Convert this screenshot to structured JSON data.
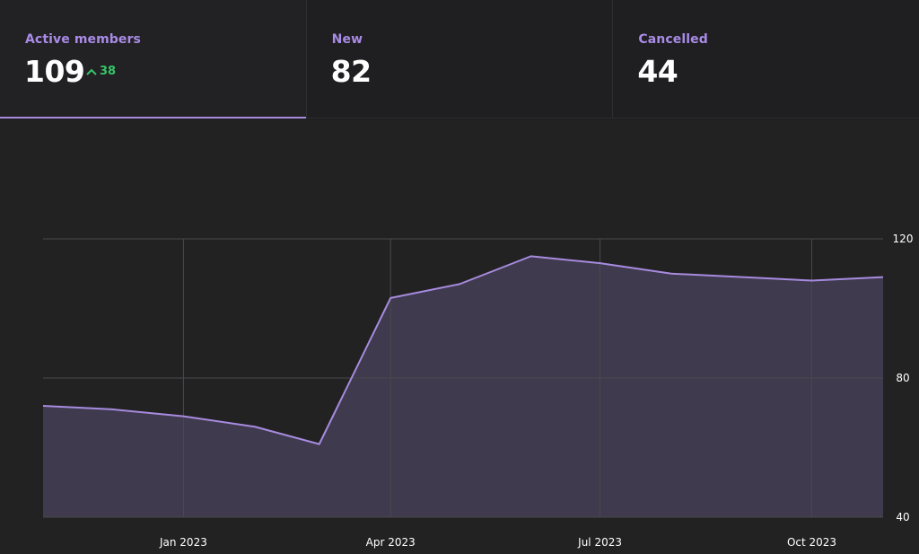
{
  "stats": [
    {
      "label": "Active members",
      "value": "109",
      "delta": "38",
      "delta_direction": "up"
    },
    {
      "label": "New",
      "value": "82"
    },
    {
      "label": "Cancelled",
      "value": "44"
    }
  ],
  "colors": {
    "accent": "#a78bdf",
    "area_fill": "#3f3a4d",
    "positive": "#36c46a",
    "grid": "#4a494c",
    "background": "#232223"
  },
  "chart_data": {
    "type": "area",
    "title": "",
    "xlabel": "",
    "ylabel": "",
    "x": [
      "2022-11-01",
      "2022-12-01",
      "2023-01-01",
      "2023-02-01",
      "2023-03-01",
      "2023-04-01",
      "2023-05-01",
      "2023-06-01",
      "2023-07-01",
      "2023-08-01",
      "2023-09-01",
      "2023-10-01",
      "2023-11-01"
    ],
    "values": [
      72,
      71,
      69,
      66,
      61,
      103,
      107,
      115,
      113,
      110,
      109,
      108,
      109
    ],
    "xlim": [
      "2022-11-01",
      "2023-11-01"
    ],
    "ylim": [
      40,
      120
    ],
    "y_ticks": [
      40,
      80,
      120
    ],
    "y_tick_labels": [
      "40",
      "80",
      "120"
    ],
    "x_ticks": [
      "2023-01-01",
      "2023-04-01",
      "2023-07-01",
      "2023-10-01"
    ],
    "x_tick_labels": [
      "Jan 2023",
      "Apr 2023",
      "Jul 2023",
      "Oct 2023"
    ],
    "y_axis_position": "right",
    "grid": true,
    "legend": false
  }
}
